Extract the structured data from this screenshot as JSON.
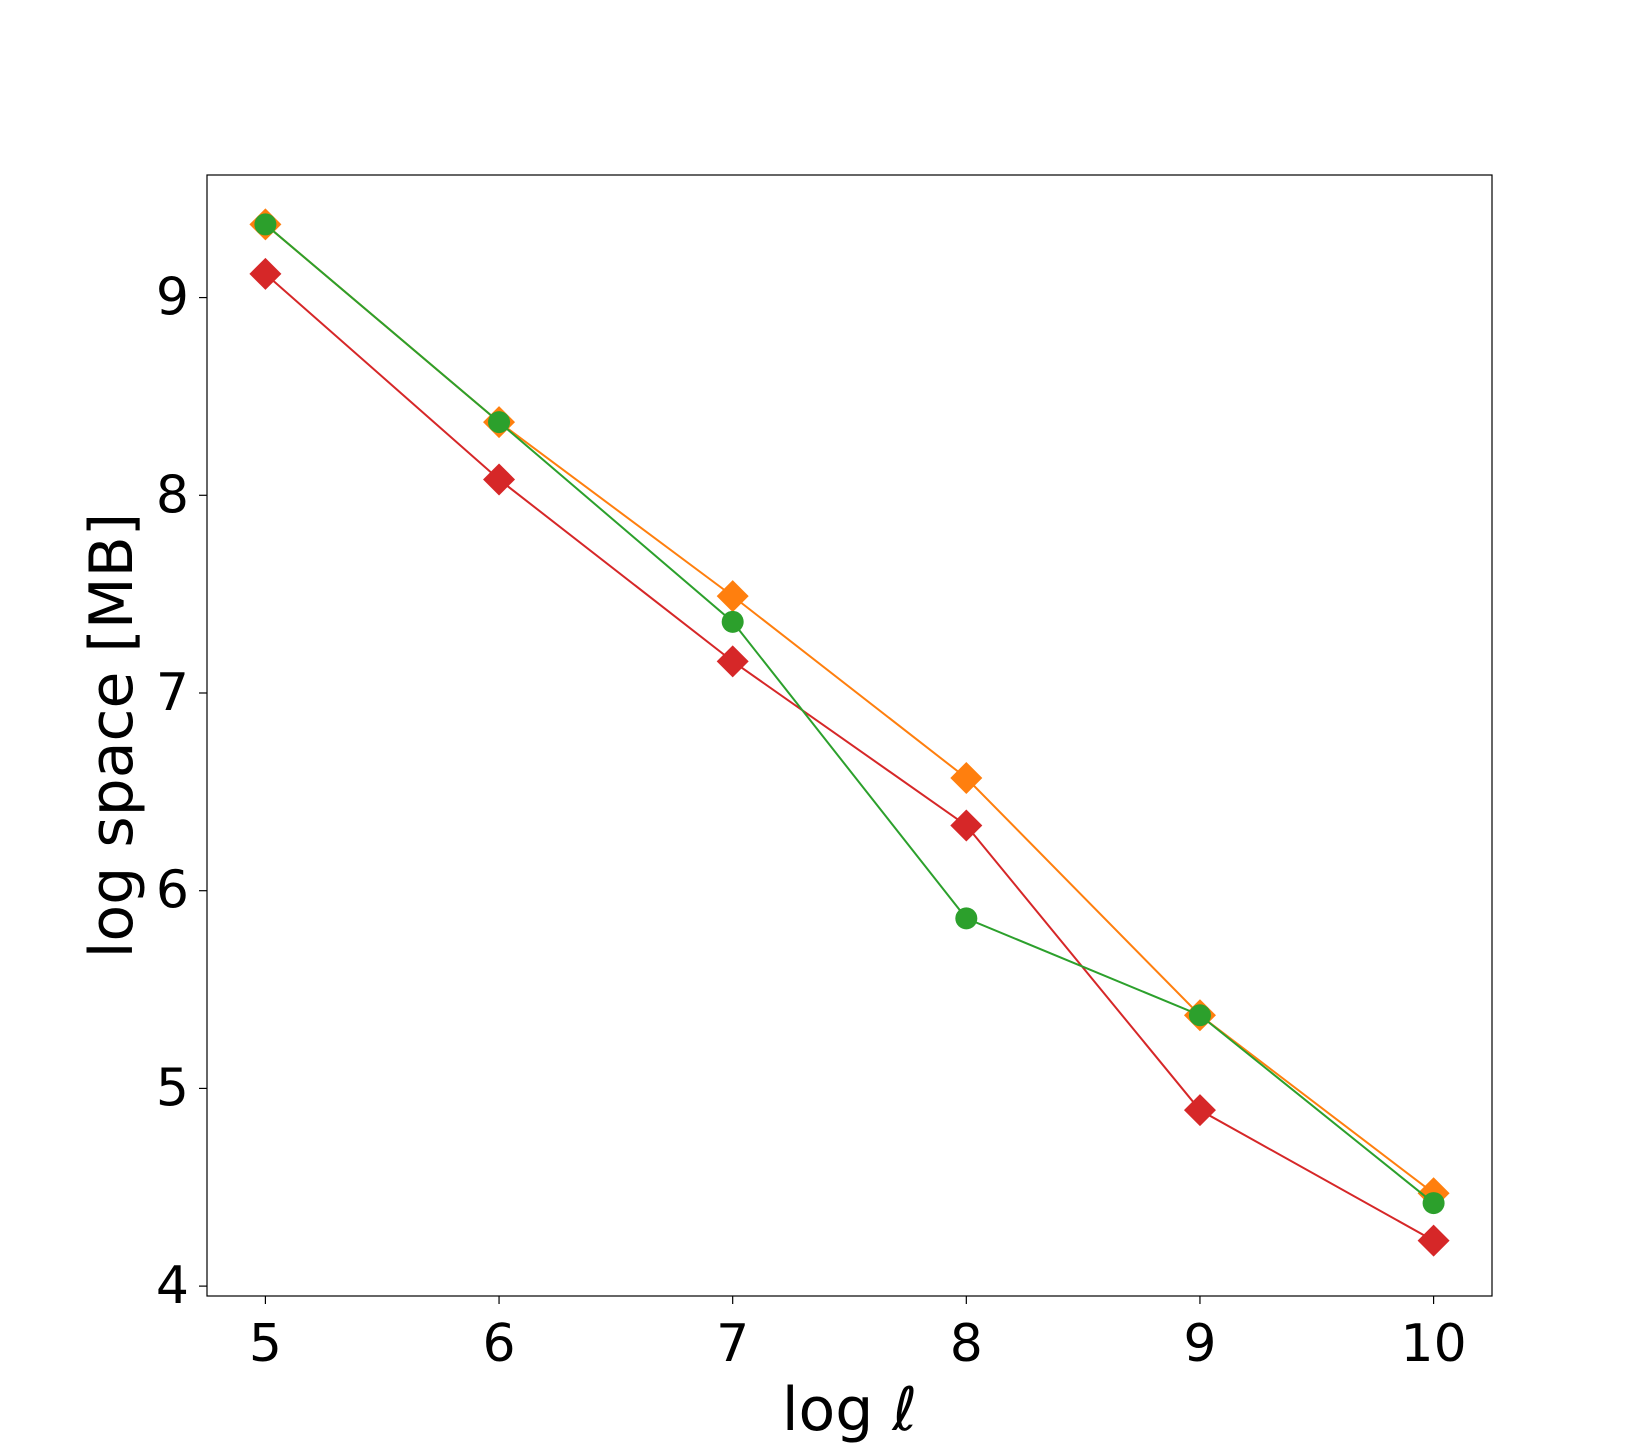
{
  "chart_data": {
    "type": "line",
    "title": "",
    "xlabel": "log ℓ",
    "ylabel": "log space [MB]",
    "xlim": [
      4.75,
      10.25
    ],
    "ylim": [
      3.95,
      9.62
    ],
    "xticks": [
      5,
      6,
      7,
      8,
      9,
      10
    ],
    "yticks": [
      4,
      5,
      6,
      7,
      8,
      9
    ],
    "grid": false,
    "legend": null,
    "x": [
      5,
      6,
      7,
      8,
      9,
      10
    ],
    "series": [
      {
        "color": "#ff7f0e",
        "marker": "diamond",
        "values": [
          9.37,
          8.37,
          7.49,
          6.57,
          5.37,
          4.47
        ]
      },
      {
        "color": "#d62728",
        "marker": "diamond",
        "values": [
          9.12,
          8.08,
          7.16,
          6.33,
          4.89,
          4.23
        ]
      },
      {
        "color": "#2ca02c",
        "marker": "circle",
        "values": [
          9.37,
          8.37,
          7.36,
          5.86,
          5.37,
          4.42
        ]
      }
    ]
  }
}
